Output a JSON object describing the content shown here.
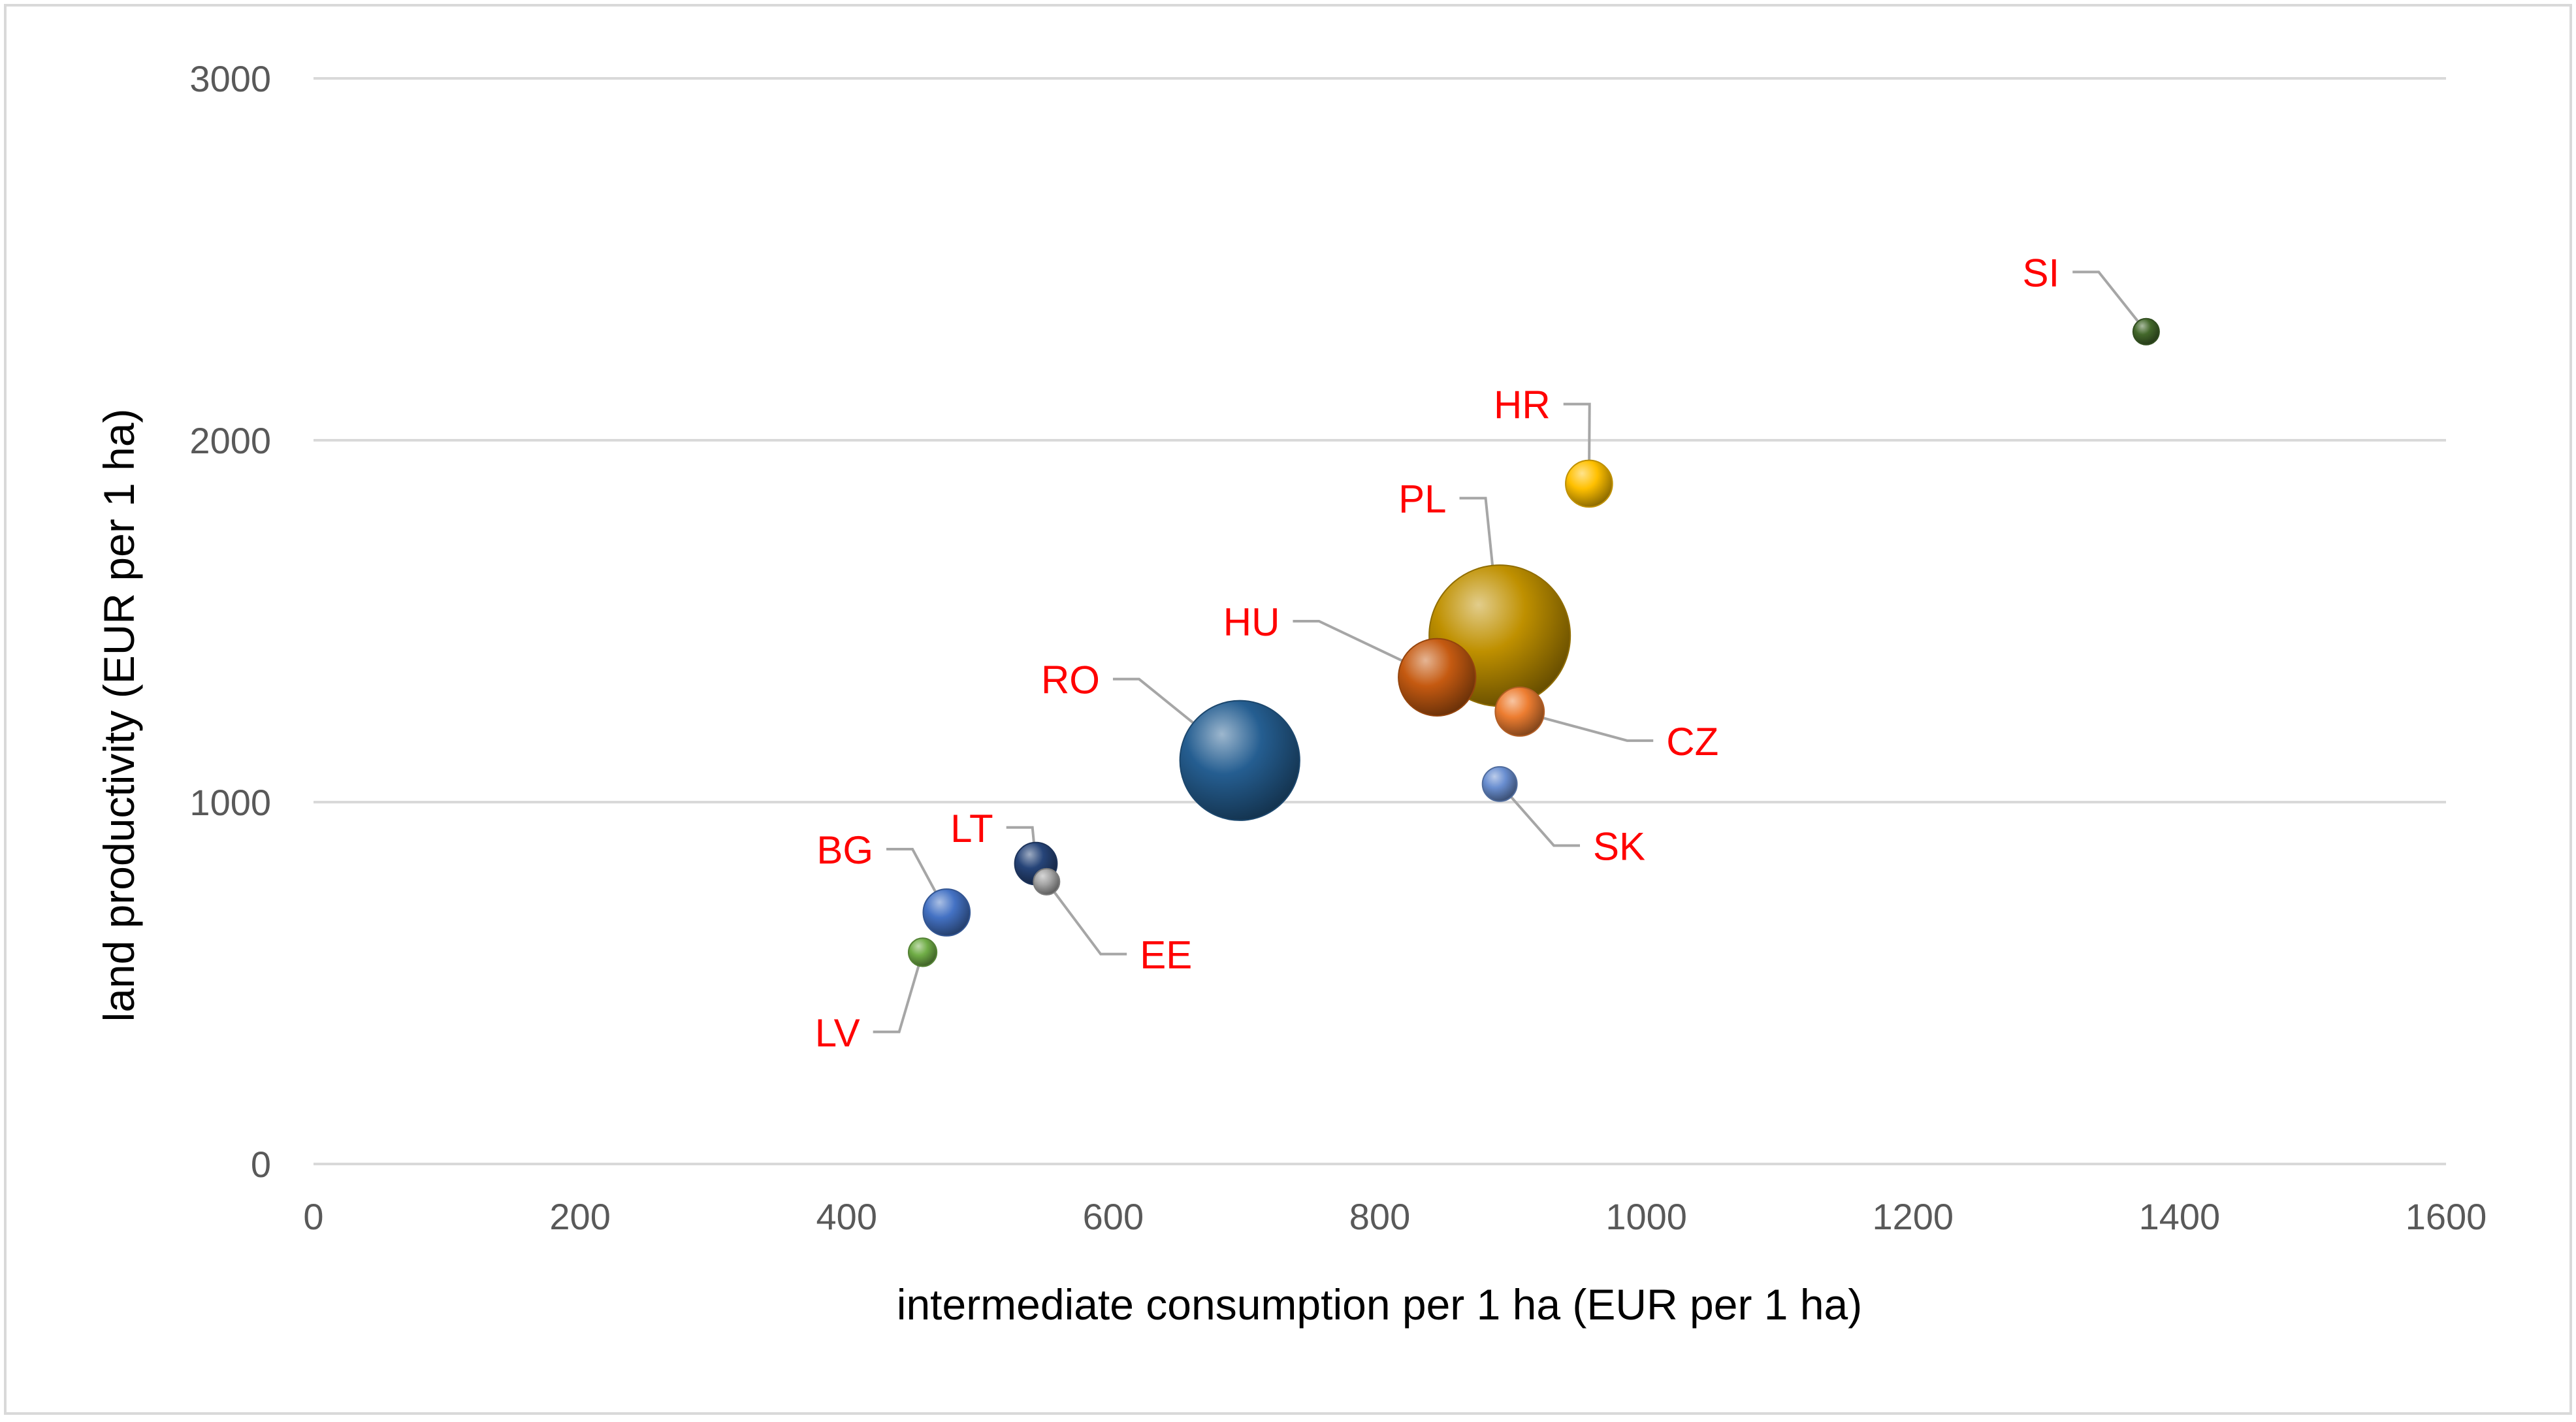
{
  "chart_data": {
    "type": "bubble",
    "title": "",
    "xlabel": "intermediate consumption per 1 ha (EUR per 1 ha)",
    "ylabel": "land productivity (EUR per 1 ha)",
    "xlim": [
      0,
      1600
    ],
    "ylim": [
      0,
      3000
    ],
    "xticks": [
      0,
      200,
      400,
      600,
      800,
      1000,
      1200,
      1400,
      1600
    ],
    "yticks": [
      0,
      1000,
      2000,
      3000
    ],
    "grid": "horizontal",
    "legend": "none",
    "label_color": "#ff0000",
    "axis_text_color": "#595959",
    "gridline_color": "#d9d9d9",
    "points": [
      {
        "label": "BG",
        "x": 475,
        "y": 695,
        "size": 0.11,
        "color": "#4472c4",
        "label_x": 420,
        "label_y": 870
      },
      {
        "label": "CZ",
        "x": 905,
        "y": 1250,
        "size": 0.12,
        "color": "#ed7d31",
        "label_x": 1015,
        "label_y": 1170
      },
      {
        "label": "EE",
        "x": 550,
        "y": 780,
        "size": 0.02,
        "color": "#a5a5a5",
        "label_x": 620,
        "label_y": 580
      },
      {
        "label": "HR",
        "x": 957,
        "y": 1880,
        "size": 0.11,
        "color": "#ffc000",
        "label_x": 928,
        "label_y": 2100
      },
      {
        "label": "HU",
        "x": 843,
        "y": 1345,
        "size": 0.3,
        "color": "#c55a11",
        "label_x": 725,
        "label_y": 1500
      },
      {
        "label": "LT",
        "x": 542,
        "y": 830,
        "size": 0.09,
        "color": "#264478",
        "label_x": 510,
        "label_y": 930
      },
      {
        "label": "LV",
        "x": 457,
        "y": 585,
        "size": 0.04,
        "color": "#70ad47",
        "label_x": 410,
        "label_y": 365
      },
      {
        "label": "PL",
        "x": 890,
        "y": 1460,
        "size": 1.0,
        "color": "#bf9000",
        "label_x": 850,
        "label_y": 1840
      },
      {
        "label": "RO",
        "x": 695,
        "y": 1115,
        "size": 0.72,
        "color": "#255e91",
        "label_x": 590,
        "label_y": 1340
      },
      {
        "label": "SI",
        "x": 1375,
        "y": 2300,
        "size": 0.03,
        "color": "#43682b",
        "label_x": 1310,
        "label_y": 2465
      },
      {
        "label": "SK",
        "x": 890,
        "y": 1050,
        "size": 0.06,
        "color": "#698ed0",
        "label_x": 960,
        "label_y": 880
      }
    ]
  }
}
